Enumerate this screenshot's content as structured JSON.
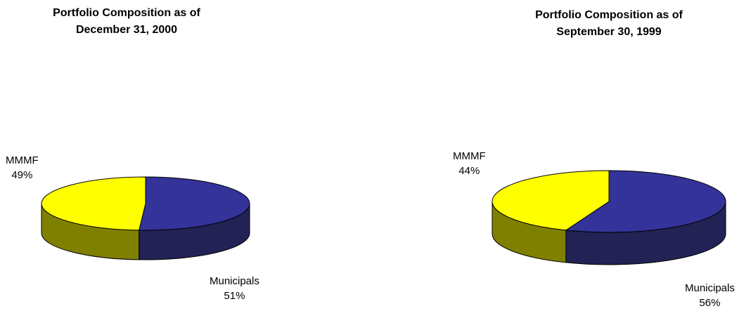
{
  "chart_data": [
    {
      "type": "pie",
      "title_line1": "Portfolio Composition as of",
      "title_line2": "December 31, 2000",
      "slices": [
        {
          "label": "Municipals",
          "value": 51,
          "value_label": "51%",
          "color": "#333399",
          "side_color": "#222255"
        },
        {
          "label": "MMMF",
          "value": 49,
          "value_label": "49%",
          "color": "#ffff00",
          "side_color": "#808000"
        }
      ]
    },
    {
      "type": "pie",
      "title_line1": "Portfolio Composition as of",
      "title_line2": "September 30, 1999",
      "slices": [
        {
          "label": "Municipals",
          "value": 56,
          "value_label": "56%",
          "color": "#333399",
          "side_color": "#222255"
        },
        {
          "label": "MMMF",
          "value": 44,
          "value_label": "44%",
          "color": "#ffff00",
          "side_color": "#808000"
        }
      ]
    }
  ]
}
